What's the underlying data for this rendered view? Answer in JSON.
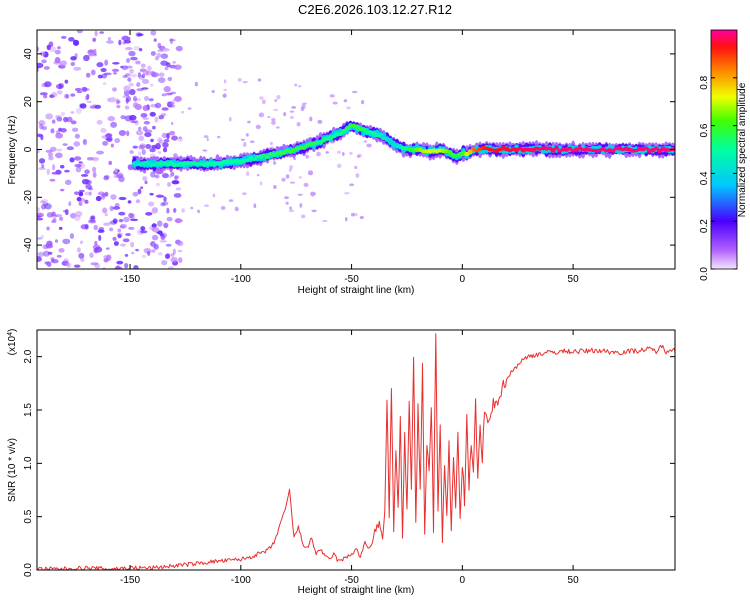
{
  "chart_data": [
    {
      "type": "heatmap",
      "title": "C2E6.2026.103.12.27.R12",
      "xlabel": "Height of straight line (km)",
      "ylabel": "Frequency (Hz)",
      "xlim": [
        -192,
        96
      ],
      "ylim": [
        -50,
        50
      ],
      "xticks": [
        -150,
        -100,
        -50,
        0,
        50
      ],
      "yticks": [
        -40,
        -20,
        0,
        20,
        40
      ],
      "colorbar": {
        "label": "Normalized spectral amplitude",
        "range": [
          0,
          1
        ],
        "ticks": [
          "0.0",
          "0.2",
          "0.4",
          "0.6",
          "0.8"
        ]
      },
      "ridge": {
        "x": [
          -148,
          -130,
          -110,
          -95,
          -85,
          -75,
          -65,
          -55,
          -50,
          -45,
          -40,
          -35,
          -32,
          -28,
          -25,
          -20,
          -15,
          -10,
          -5,
          -2,
          0,
          2,
          5,
          10,
          20,
          30,
          50,
          70,
          95
        ],
        "y": [
          -6,
          -6,
          -6,
          -4,
          -2,
          0,
          3,
          7,
          10,
          8,
          7,
          5,
          3,
          1,
          0,
          0,
          -1,
          0,
          -2,
          -3,
          -1,
          -2,
          0,
          0,
          0,
          0,
          0,
          0,
          0
        ],
        "amplitude": [
          0.45,
          0.5,
          0.5,
          0.5,
          0.55,
          0.6,
          0.55,
          0.5,
          0.6,
          0.55,
          0.5,
          0.45,
          0.4,
          0.45,
          0.55,
          0.65,
          0.7,
          0.7,
          0.6,
          0.55,
          0.6,
          0.7,
          0.85,
          0.92,
          0.95,
          0.97,
          0.98,
          0.98,
          0.98
        ]
      }
    },
    {
      "type": "line",
      "xlabel": "Height of straight line (km)",
      "ylabel": "SNR (10 * v/v)",
      "yscale_label": "(x10",
      "yscale_exp": "4",
      "yscale_close": ")",
      "xlim": [
        -192,
        96
      ],
      "ylim": [
        0,
        2.25
      ],
      "xticks": [
        -150,
        -100,
        -50,
        0,
        50
      ],
      "yticks": [
        0.0,
        0.5,
        1.0,
        1.5,
        2.0
      ],
      "ytick_labels": [
        "0.0",
        "0.5",
        "1.0",
        "1.5",
        "2.0"
      ],
      "color": "#e83030",
      "series": [
        {
          "name": "SNR",
          "x": [
            -192,
            -180,
            -170,
            -160,
            -150,
            -140,
            -130,
            -120,
            -112,
            -105,
            -100,
            -96,
            -92,
            -88,
            -85,
            -82,
            -80,
            -78,
            -76,
            -74,
            -72,
            -70,
            -68,
            -66,
            -64,
            -62,
            -60,
            -58,
            -56,
            -54,
            -52,
            -50,
            -48,
            -46,
            -44,
            -42,
            -40,
            -38,
            -36,
            -35,
            -34,
            -33,
            -32,
            -31,
            -30,
            -29,
            -28,
            -27,
            -26,
            -25,
            -24,
            -23,
            -22,
            -21,
            -20,
            -19,
            -18,
            -17,
            -16,
            -15,
            -14,
            -13,
            -12,
            -11,
            -10,
            -9,
            -8,
            -7,
            -6,
            -5,
            -4,
            -3,
            -2,
            -1,
            0,
            1,
            2,
            3,
            4,
            5,
            6,
            7,
            8,
            9,
            10,
            12,
            14,
            16,
            18,
            20,
            22,
            24,
            26,
            28,
            30,
            33,
            36,
            40,
            45,
            50,
            55,
            60,
            65,
            70,
            75,
            80,
            85,
            88,
            90,
            92,
            94,
            96
          ],
          "y": [
            0.01,
            0.01,
            0.02,
            0.01,
            0.02,
            0.02,
            0.04,
            0.06,
            0.08,
            0.09,
            0.1,
            0.12,
            0.15,
            0.18,
            0.25,
            0.45,
            0.55,
            0.75,
            0.3,
            0.4,
            0.25,
            0.2,
            0.3,
            0.15,
            0.2,
            0.12,
            0.1,
            0.15,
            0.08,
            0.1,
            0.12,
            0.15,
            0.2,
            0.12,
            0.25,
            0.2,
            0.3,
            0.45,
            0.25,
            0.6,
            1.55,
            0.5,
            1.7,
            0.4,
            1.1,
            0.6,
            1.4,
            0.3,
            1.25,
            0.55,
            1.6,
            0.7,
            2.0,
            0.4,
            1.5,
            0.8,
            1.9,
            0.35,
            1.2,
            0.9,
            1.55,
            0.4,
            2.25,
            0.5,
            1.4,
            0.3,
            0.95,
            0.5,
            1.2,
            0.35,
            1.05,
            0.6,
            1.25,
            0.5,
            1.0,
            0.65,
            1.4,
            0.8,
            1.15,
            0.9,
            1.55,
            0.85,
            1.35,
            1.0,
            1.5,
            1.35,
            1.55,
            1.6,
            1.7,
            1.8,
            1.85,
            1.9,
            1.95,
            1.98,
            2.0,
            2.02,
            2.03,
            2.04,
            2.05,
            2.05,
            2.05,
            2.06,
            2.05,
            2.04,
            2.05,
            2.06,
            2.07,
            2.05,
            2.1,
            2.05,
            2.08,
            2.05
          ]
        }
      ]
    }
  ]
}
